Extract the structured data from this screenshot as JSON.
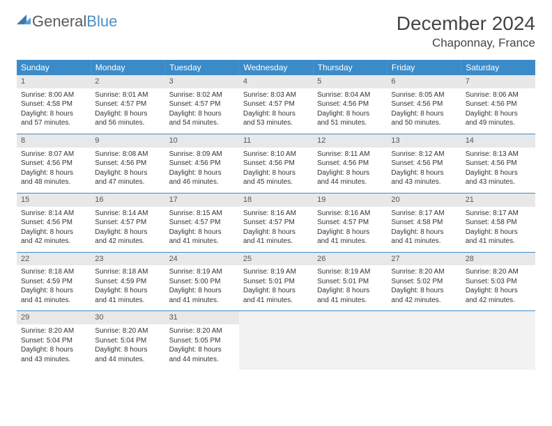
{
  "brand": {
    "part1": "General",
    "part2": "Blue"
  },
  "title": "December 2024",
  "location": "Chaponnay, France",
  "style": {
    "header_bg": "#3b8bc9",
    "header_fg": "#ffffff",
    "row_divider": "#3b8bc9",
    "daynum_bg": "#e8e8e8",
    "empty_bg": "#f2f2f2",
    "page_bg": "#ffffff",
    "text_color": "#333333",
    "title_color": "#444444",
    "logo_gray": "#5a5a5a",
    "logo_blue": "#4a8fc7",
    "month_fontsize": 28,
    "location_fontsize": 17,
    "dayheader_fontsize": 12,
    "cell_fontsize": 10
  },
  "day_headers": [
    "Sunday",
    "Monday",
    "Tuesday",
    "Wednesday",
    "Thursday",
    "Friday",
    "Saturday"
  ],
  "weeks": [
    [
      {
        "n": "1",
        "sr": "8:00 AM",
        "ss": "4:58 PM",
        "dl": "8 hours and 57 minutes."
      },
      {
        "n": "2",
        "sr": "8:01 AM",
        "ss": "4:57 PM",
        "dl": "8 hours and 56 minutes."
      },
      {
        "n": "3",
        "sr": "8:02 AM",
        "ss": "4:57 PM",
        "dl": "8 hours and 54 minutes."
      },
      {
        "n": "4",
        "sr": "8:03 AM",
        "ss": "4:57 PM",
        "dl": "8 hours and 53 minutes."
      },
      {
        "n": "5",
        "sr": "8:04 AM",
        "ss": "4:56 PM",
        "dl": "8 hours and 51 minutes."
      },
      {
        "n": "6",
        "sr": "8:05 AM",
        "ss": "4:56 PM",
        "dl": "8 hours and 50 minutes."
      },
      {
        "n": "7",
        "sr": "8:06 AM",
        "ss": "4:56 PM",
        "dl": "8 hours and 49 minutes."
      }
    ],
    [
      {
        "n": "8",
        "sr": "8:07 AM",
        "ss": "4:56 PM",
        "dl": "8 hours and 48 minutes."
      },
      {
        "n": "9",
        "sr": "8:08 AM",
        "ss": "4:56 PM",
        "dl": "8 hours and 47 minutes."
      },
      {
        "n": "10",
        "sr": "8:09 AM",
        "ss": "4:56 PM",
        "dl": "8 hours and 46 minutes."
      },
      {
        "n": "11",
        "sr": "8:10 AM",
        "ss": "4:56 PM",
        "dl": "8 hours and 45 minutes."
      },
      {
        "n": "12",
        "sr": "8:11 AM",
        "ss": "4:56 PM",
        "dl": "8 hours and 44 minutes."
      },
      {
        "n": "13",
        "sr": "8:12 AM",
        "ss": "4:56 PM",
        "dl": "8 hours and 43 minutes."
      },
      {
        "n": "14",
        "sr": "8:13 AM",
        "ss": "4:56 PM",
        "dl": "8 hours and 43 minutes."
      }
    ],
    [
      {
        "n": "15",
        "sr": "8:14 AM",
        "ss": "4:56 PM",
        "dl": "8 hours and 42 minutes."
      },
      {
        "n": "16",
        "sr": "8:14 AM",
        "ss": "4:57 PM",
        "dl": "8 hours and 42 minutes."
      },
      {
        "n": "17",
        "sr": "8:15 AM",
        "ss": "4:57 PM",
        "dl": "8 hours and 41 minutes."
      },
      {
        "n": "18",
        "sr": "8:16 AM",
        "ss": "4:57 PM",
        "dl": "8 hours and 41 minutes."
      },
      {
        "n": "19",
        "sr": "8:16 AM",
        "ss": "4:57 PM",
        "dl": "8 hours and 41 minutes."
      },
      {
        "n": "20",
        "sr": "8:17 AM",
        "ss": "4:58 PM",
        "dl": "8 hours and 41 minutes."
      },
      {
        "n": "21",
        "sr": "8:17 AM",
        "ss": "4:58 PM",
        "dl": "8 hours and 41 minutes."
      }
    ],
    [
      {
        "n": "22",
        "sr": "8:18 AM",
        "ss": "4:59 PM",
        "dl": "8 hours and 41 minutes."
      },
      {
        "n": "23",
        "sr": "8:18 AM",
        "ss": "4:59 PM",
        "dl": "8 hours and 41 minutes."
      },
      {
        "n": "24",
        "sr": "8:19 AM",
        "ss": "5:00 PM",
        "dl": "8 hours and 41 minutes."
      },
      {
        "n": "25",
        "sr": "8:19 AM",
        "ss": "5:01 PM",
        "dl": "8 hours and 41 minutes."
      },
      {
        "n": "26",
        "sr": "8:19 AM",
        "ss": "5:01 PM",
        "dl": "8 hours and 41 minutes."
      },
      {
        "n": "27",
        "sr": "8:20 AM",
        "ss": "5:02 PM",
        "dl": "8 hours and 42 minutes."
      },
      {
        "n": "28",
        "sr": "8:20 AM",
        "ss": "5:03 PM",
        "dl": "8 hours and 42 minutes."
      }
    ],
    [
      {
        "n": "29",
        "sr": "8:20 AM",
        "ss": "5:04 PM",
        "dl": "8 hours and 43 minutes."
      },
      {
        "n": "30",
        "sr": "8:20 AM",
        "ss": "5:04 PM",
        "dl": "8 hours and 44 minutes."
      },
      {
        "n": "31",
        "sr": "8:20 AM",
        "ss": "5:05 PM",
        "dl": "8 hours and 44 minutes."
      },
      null,
      null,
      null,
      null
    ]
  ],
  "labels": {
    "sunrise": "Sunrise:",
    "sunset": "Sunset:",
    "daylight": "Daylight:"
  }
}
